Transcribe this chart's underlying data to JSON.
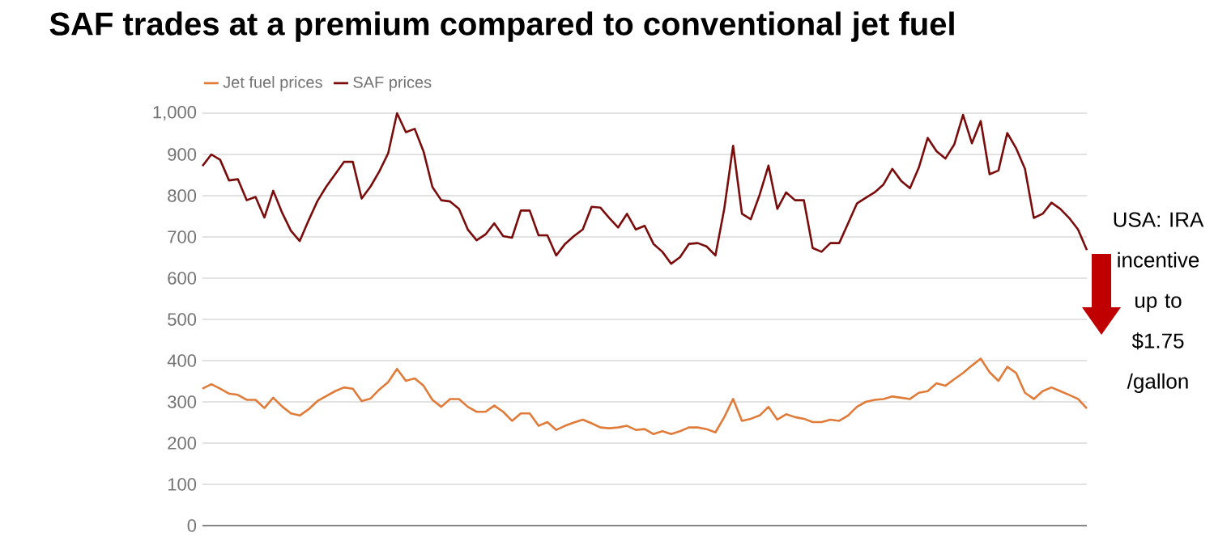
{
  "chart_data": {
    "type": "line",
    "title": "SAF trades at a premium compared to conventional jet fuel",
    "categories": [
      null,
      null,
      null,
      null,
      null,
      null,
      null,
      null,
      null,
      null,
      null,
      null,
      null,
      null,
      null,
      null,
      null,
      null,
      null,
      null,
      null,
      null,
      null,
      null,
      null,
      null,
      null,
      null,
      null,
      null,
      null,
      null,
      null,
      null,
      null,
      null,
      null,
      null,
      null,
      null,
      null,
      null,
      null,
      null,
      null,
      null,
      null,
      null,
      null,
      null,
      null,
      null,
      null,
      null,
      null,
      null,
      null,
      null,
      null,
      null,
      null,
      null,
      null,
      null,
      null,
      null,
      null,
      null,
      null,
      null,
      null,
      null,
      null,
      null,
      null,
      null,
      null,
      null,
      null,
      null,
      null,
      null,
      null,
      null,
      null,
      null,
      null,
      null,
      null,
      null,
      null,
      null,
      null,
      null,
      null,
      null,
      null,
      null,
      null,
      null,
      null
    ],
    "series": [
      {
        "name": "Jet fuel prices",
        "color": "#e07b39",
        "values": [
          332,
          343,
          332,
          320,
          317,
          305,
          305,
          285,
          310,
          289,
          272,
          267,
          282,
          302,
          314,
          326,
          335,
          332,
          302,
          308,
          330,
          348,
          380,
          351,
          357,
          339,
          305,
          288,
          307,
          307,
          288,
          276,
          276,
          291,
          276,
          254,
          272,
          272,
          242,
          251,
          232,
          242,
          250,
          257,
          248,
          238,
          236,
          238,
          242,
          232,
          234,
          222,
          229,
          222,
          229,
          238,
          238,
          234,
          226,
          263,
          307,
          254,
          259,
          267,
          288,
          257,
          270,
          263,
          259,
          251,
          251,
          257,
          254,
          267,
          288,
          300,
          305,
          307,
          313,
          310,
          307,
          322,
          326,
          345,
          339,
          355,
          370,
          388,
          405,
          372,
          351,
          385,
          370,
          322,
          307,
          326,
          335,
          326,
          317,
          307,
          284
        ]
      },
      {
        "name": "SAF prices",
        "color": "#7b0c0c",
        "values": [
          872,
          900,
          887,
          837,
          840,
          789,
          797,
          747,
          812,
          759,
          715,
          690,
          740,
          787,
          822,
          852,
          882,
          882,
          793,
          822,
          859,
          903,
          1000,
          954,
          962,
          907,
          821,
          789,
          786,
          768,
          718,
          692,
          706,
          733,
          702,
          698,
          764,
          764,
          704,
          704,
          655,
          683,
          702,
          718,
          773,
          771,
          746,
          723,
          756,
          718,
          727,
          683,
          664,
          635,
          651,
          683,
          685,
          677,
          655,
          768,
          921,
          756,
          743,
          802,
          873,
          768,
          808,
          789,
          789,
          673,
          664,
          685,
          685,
          733,
          781,
          795,
          808,
          827,
          865,
          836,
          818,
          868,
          940,
          908,
          890,
          924,
          996,
          927,
          981,
          852,
          861,
          952,
          915,
          865,
          746,
          756,
          783,
          768,
          746,
          718,
          668
        ]
      }
    ],
    "ylim": [
      0,
      1000
    ],
    "yticks": [
      0,
      100,
      200,
      300,
      400,
      500,
      600,
      700,
      800,
      900,
      {
        "value": 1000,
        "label": "1,000"
      }
    ],
    "tick_labels": "y",
    "grid": "y",
    "legend": "top left",
    "annotations": [
      "USA: IRA incentive up to $1.75 /gallon"
    ]
  }
}
